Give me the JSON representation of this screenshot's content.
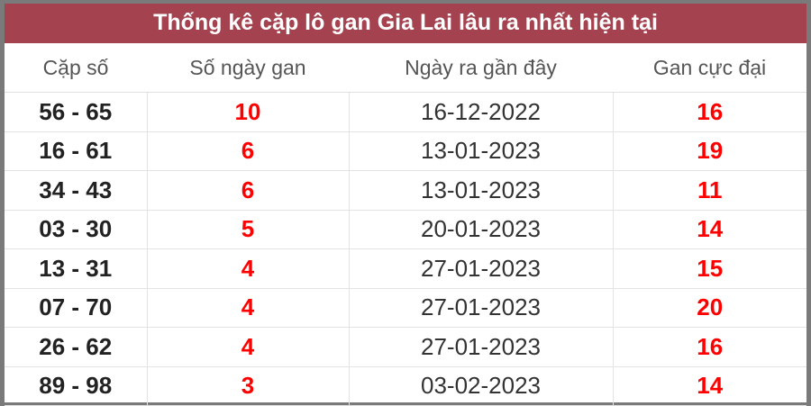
{
  "title": "Thống kê cặp lô gan Gia Lai lâu ra nhất hiện tại",
  "columns": [
    "Cặp số",
    "Số ngày gan",
    "Ngày ra gần đây",
    "Gan cực đại"
  ],
  "rows": [
    [
      "56 - 65",
      "10",
      "16-12-2022",
      "16"
    ],
    [
      "16 - 61",
      "6",
      "13-01-2023",
      "19"
    ],
    [
      "34 - 43",
      "6",
      "13-01-2023",
      "11"
    ],
    [
      "03 - 30",
      "5",
      "20-01-2023",
      "14"
    ],
    [
      "13 - 31",
      "4",
      "27-01-2023",
      "15"
    ],
    [
      "07 - 70",
      "4",
      "27-01-2023",
      "20"
    ],
    [
      "26 - 62",
      "4",
      "27-01-2023",
      "16"
    ],
    [
      "89 - 98",
      "3",
      "03-02-2023",
      "14"
    ]
  ],
  "colors": {
    "title_bg": "#a4424f",
    "highlight": "#ff0000"
  }
}
